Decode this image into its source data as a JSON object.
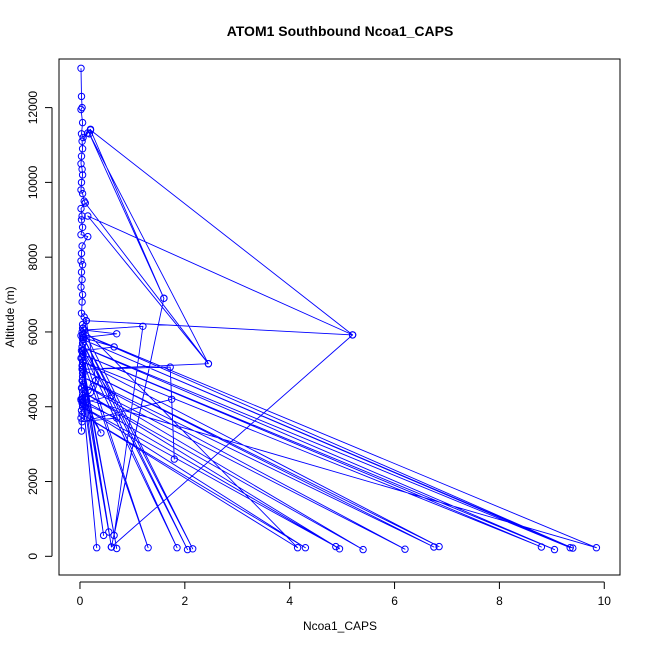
{
  "chart_data": {
    "type": "line",
    "title": "ATOM1 Southbound Ncoa1_CAPS",
    "xlabel": "Ncoa1_CAPS",
    "ylabel": "Altitude (m)",
    "xlim": [
      -0.4,
      10.3
    ],
    "ylim": [
      -500,
      13300
    ],
    "xticks": [
      0,
      2,
      4,
      6,
      8,
      10
    ],
    "yticks": [
      0,
      2000,
      4000,
      6000,
      8000,
      10000,
      12000
    ],
    "grid": false,
    "legend": "none",
    "series": [
      {
        "color": "#0000ff",
        "points": [
          [
            0.02,
            13050
          ],
          [
            0.03,
            12300
          ],
          [
            0.04,
            12000
          ],
          [
            0.02,
            11950
          ],
          [
            0.05,
            11600
          ],
          [
            0.03,
            11300
          ],
          [
            0.06,
            11200
          ],
          [
            0.2,
            11420
          ],
          [
            0.15,
            11320
          ],
          [
            0.04,
            11100
          ],
          [
            0.05,
            10900
          ],
          [
            0.03,
            10700
          ],
          [
            0.02,
            10500
          ],
          [
            0.04,
            10350
          ],
          [
            0.05,
            10200
          ],
          [
            0.03,
            10000
          ],
          [
            0.02,
            9800
          ],
          [
            0.05,
            9700
          ],
          [
            0.08,
            9500
          ],
          [
            0.1,
            9450
          ],
          [
            0.02,
            9300
          ],
          [
            0.04,
            9100
          ],
          [
            0.03,
            9000
          ],
          [
            0.05,
            8800
          ],
          [
            0.02,
            8600
          ],
          [
            0.15,
            8550
          ],
          [
            0.04,
            8300
          ],
          [
            0.03,
            8100
          ],
          [
            0.02,
            7900
          ],
          [
            0.05,
            7800
          ],
          [
            0.03,
            7600
          ],
          [
            0.04,
            7400
          ],
          [
            0.02,
            7200
          ],
          [
            0.05,
            7000
          ],
          [
            0.04,
            6800
          ],
          [
            0.03,
            6500
          ],
          [
            0.08,
            6400
          ],
          [
            0.12,
            6300
          ],
          [
            0.05,
            6200
          ],
          [
            0.06,
            6100
          ],
          [
            0.04,
            6000
          ],
          [
            0.02,
            5900
          ],
          [
            0.07,
            5800
          ],
          [
            0.05,
            5700
          ],
          [
            0.04,
            5600
          ],
          [
            0.03,
            5500
          ],
          [
            0.06,
            5400
          ],
          [
            0.02,
            5300
          ],
          [
            0.05,
            5200
          ],
          [
            0.04,
            5100
          ],
          [
            0.06,
            5000
          ],
          [
            0.05,
            4900
          ],
          [
            0.04,
            4700
          ],
          [
            0.03,
            4500
          ],
          [
            0.05,
            4300
          ],
          [
            0.02,
            4200
          ],
          [
            0.06,
            4150
          ],
          [
            0.04,
            4100
          ],
          [
            0.1,
            4000
          ],
          [
            0.03,
            3900
          ],
          [
            0.02,
            3700
          ],
          [
            0.03,
            3350
          ],
          [
            0.02,
            4180
          ],
          [
            0.05,
            4220
          ],
          [
            9.85,
            230
          ],
          [
            0.06,
            5950
          ],
          [
            9.4,
            220
          ],
          [
            0.05,
            5800
          ],
          [
            9.35,
            230
          ],
          [
            0.04,
            5600
          ],
          [
            9.05,
            180
          ],
          [
            0.05,
            5400
          ],
          [
            8.8,
            250
          ],
          [
            0.06,
            5200
          ],
          [
            6.85,
            260
          ],
          [
            0.04,
            5000
          ],
          [
            6.75,
            250
          ],
          [
            0.05,
            4800
          ],
          [
            6.2,
            190
          ],
          [
            0.06,
            4600
          ],
          [
            5.4,
            180
          ],
          [
            0.05,
            4400
          ],
          [
            4.95,
            200
          ],
          [
            0.04,
            4200
          ],
          [
            4.88,
            260
          ],
          [
            0.05,
            4000
          ],
          [
            4.3,
            230
          ],
          [
            0.04,
            3800
          ],
          [
            4.15,
            230
          ],
          [
            0.05,
            6100
          ],
          [
            2.15,
            200
          ],
          [
            0.05,
            5900
          ],
          [
            2.05,
            180
          ],
          [
            0.06,
            5700
          ],
          [
            1.85,
            230
          ],
          [
            0.05,
            5500
          ],
          [
            1.3,
            230
          ],
          [
            0.04,
            5300
          ],
          [
            0.7,
            210
          ],
          [
            0.05,
            5100
          ],
          [
            0.6,
            250
          ],
          [
            0.06,
            4900
          ],
          [
            0.55,
            650
          ],
          [
            0.05,
            4700
          ],
          [
            0.45,
            560
          ],
          [
            0.04,
            4500
          ],
          [
            0.32,
            230
          ],
          [
            0.05,
            4300
          ],
          [
            0.4,
            3300
          ],
          [
            0.06,
            4100
          ],
          [
            0.1,
            4250
          ],
          [
            0.2,
            4380
          ],
          [
            0.25,
            4550
          ],
          [
            0.3,
            4700
          ],
          [
            0.12,
            6300
          ],
          [
            5.2,
            5920
          ],
          [
            0.6,
            250
          ],
          [
            1.6,
            6900
          ],
          [
            0.65,
            560
          ],
          [
            1.2,
            6150
          ],
          [
            0.08,
            6050
          ],
          [
            0.7,
            5950
          ],
          [
            0.06,
            5850
          ],
          [
            0.65,
            5600
          ],
          [
            0.06,
            5500
          ],
          [
            0.6,
            4300
          ],
          [
            0.05,
            4100
          ],
          [
            0.7,
            3700
          ],
          [
            0.04,
            3600
          ],
          [
            1.75,
            4200
          ],
          [
            1.8,
            2600
          ],
          [
            1.72,
            5060
          ],
          [
            0.05,
            5000
          ],
          [
            2.45,
            5150
          ],
          [
            0.15,
            9100
          ],
          [
            5.2,
            5920
          ],
          [
            0.2,
            11400
          ],
          [
            1.6,
            6900
          ],
          [
            0.18,
            11300
          ],
          [
            2.45,
            5150
          ],
          [
            0.1,
            9450
          ]
        ]
      }
    ]
  }
}
